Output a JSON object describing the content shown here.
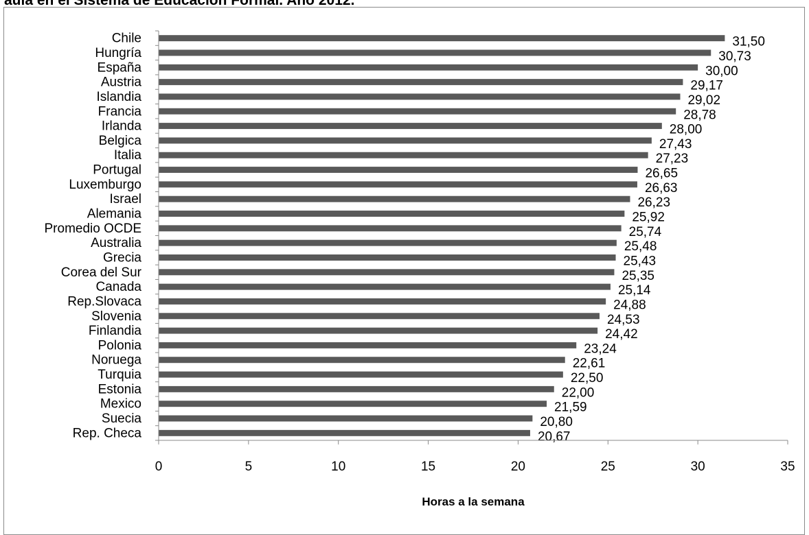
{
  "page": {
    "title_partial": "aula en el Sistema de Educación Formal. Año 2012."
  },
  "chart_data": {
    "type": "bar",
    "orientation": "horizontal",
    "categories": [
      "Chile",
      "Hungría",
      "España",
      "Austria",
      "Islandia",
      "Francia",
      "Irlanda",
      "Belgica",
      "Italia",
      "Portugal",
      "Luxemburgo",
      "Israel",
      "Alemania",
      "Promedio OCDE",
      "Australia",
      "Grecia",
      "Corea del Sur",
      "Canada",
      "Rep.Slovaca",
      "Slovenia",
      "Finlandia",
      "Polonia",
      "Noruega",
      "Turquia",
      "Estonia",
      "Mexico",
      "Suecia",
      "Rep. Checa"
    ],
    "values": [
      31.5,
      30.73,
      30.0,
      29.17,
      29.02,
      28.78,
      28.0,
      27.43,
      27.23,
      26.65,
      26.63,
      26.23,
      25.92,
      25.74,
      25.48,
      25.43,
      25.35,
      25.14,
      24.88,
      24.53,
      24.42,
      23.24,
      22.61,
      22.5,
      22.0,
      21.59,
      20.8,
      20.67
    ],
    "value_labels": [
      "31,50",
      "30,73",
      "30,00",
      "29,17",
      "29,02",
      "28,78",
      "28,00",
      "27,43",
      "27,23",
      "26,65",
      "26,63",
      "26,23",
      "25,92",
      "25,74",
      "25,48",
      "25,43",
      "25,35",
      "25,14",
      "24,88",
      "24,53",
      "24,42",
      "23,24",
      "22,61",
      "22,50",
      "22,00",
      "21,59",
      "20,80",
      "20,67"
    ],
    "xlabel": "Horas a la semana",
    "ylabel": "",
    "xlim": [
      0,
      35
    ],
    "xticks": [
      0,
      5,
      10,
      15,
      20,
      25,
      30,
      35
    ],
    "grid": false,
    "legend": "none",
    "bar_color": "#595959"
  }
}
